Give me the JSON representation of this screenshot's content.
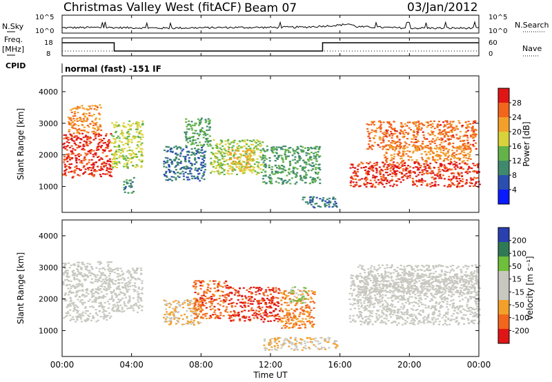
{
  "header": {
    "station": "Christmas Valley West (fitACF)",
    "beam": "Beam 07",
    "date": "03/Jan/2012"
  },
  "left_labels": {
    "nsky": "N.Sky",
    "freq_1": "Freq.",
    "freq_2": "[MHz]",
    "cpid": "CPID"
  },
  "right_labels": {
    "nsearch": "N.Search",
    "nave": "Nave"
  },
  "mode_text": "normal (fast) -151 IF",
  "colors": {
    "noise": "#000000",
    "power_scale": [
      "#0a1aff",
      "#2a4fb0",
      "#3f8a6c",
      "#63b34a",
      "#d9d23a",
      "#f3a02a",
      "#f2661c",
      "#e01616"
    ],
    "velocity_scale": [
      "#e01616",
      "#f2661c",
      "#f3a02a",
      "#c8c8c0",
      "#c8c8c0",
      "#6fbf3a",
      "#2f7a54",
      "#2a3fb0"
    ]
  },
  "chart_data": [
    {
      "type": "line",
      "name": "noise",
      "x": [
        "00:00",
        "02:00",
        "04:00",
        "06:00",
        "08:00",
        "10:00",
        "12:00",
        "14:00",
        "16:00",
        "16:30",
        "17:00",
        "20:00",
        "24:00"
      ],
      "sky_log10": [
        1.4,
        1.5,
        1.4,
        1.3,
        1.4,
        1.5,
        1.5,
        1.6,
        2.2,
        2.6,
        1.7,
        1.3,
        1.3
      ],
      "left_ticks": [
        "10^5",
        "10^0"
      ],
      "right_ticks": [
        "10^5",
        "10^0"
      ]
    },
    {
      "type": "line",
      "name": "frequency",
      "segments": [
        {
          "start": "00:00",
          "end": "03:00",
          "freq": 15.5
        },
        {
          "start": "03:00",
          "end": "15:00",
          "freq": 10.5
        },
        {
          "start": "15:00",
          "end": "24:00",
          "freq": 15.5
        }
      ],
      "left_ticks": [
        "18",
        "8"
      ],
      "right_ticks": [
        "60",
        "0"
      ],
      "nave": 15
    },
    {
      "type": "heatmap",
      "name": "power",
      "ylabel": "Slant Range [km]",
      "yticks": [
        "4000",
        "3000",
        "2000",
        "1000"
      ],
      "ylim": [
        180,
        4500
      ],
      "colorbar_label": "Power [dB]",
      "colorbar_ticks": [
        "28",
        "24",
        "20",
        "16",
        "12",
        "8",
        "4"
      ],
      "clim": [
        0,
        30
      ],
      "regions": [
        {
          "t0": 0.0,
          "t1": 2.8,
          "r0": 1300,
          "r1": 2700,
          "value": 27
        },
        {
          "t0": 0.3,
          "t1": 2.2,
          "r0": 2700,
          "r1": 3600,
          "value": 22
        },
        {
          "t0": 2.8,
          "t1": 4.6,
          "r0": 1600,
          "r1": 3100,
          "value": 16
        },
        {
          "t0": 3.5,
          "t1": 4.1,
          "r0": 800,
          "r1": 1300,
          "value": 9
        },
        {
          "t0": 5.8,
          "t1": 8.2,
          "r0": 1200,
          "r1": 2300,
          "value": 8
        },
        {
          "t0": 7.0,
          "t1": 8.5,
          "r0": 2300,
          "r1": 3200,
          "value": 12
        },
        {
          "t0": 8.5,
          "t1": 11.5,
          "r0": 1400,
          "r1": 2500,
          "value": 15
        },
        {
          "t0": 9.5,
          "t1": 11.0,
          "r0": 1500,
          "r1": 2200,
          "value": 19
        },
        {
          "t0": 11.5,
          "t1": 14.8,
          "r0": 1100,
          "r1": 2300,
          "value": 11
        },
        {
          "t0": 13.8,
          "t1": 15.8,
          "r0": 350,
          "r1": 700,
          "value": 8
        },
        {
          "t0": 16.5,
          "t1": 24.0,
          "r0": 1000,
          "r1": 1800,
          "value": 27
        },
        {
          "t0": 17.5,
          "t1": 23.8,
          "r0": 2200,
          "r1": 3100,
          "value": 24
        },
        {
          "t0": 18.5,
          "t1": 23.5,
          "r0": 1800,
          "r1": 2300,
          "value": 22
        }
      ]
    },
    {
      "type": "heatmap",
      "name": "velocity",
      "ylabel": "Slant Range [km]",
      "yticks": [
        "4000",
        "3000",
        "2000",
        "1000"
      ],
      "ylim": [
        180,
        4500
      ],
      "colorbar_label": "Velocity [m s⁻¹]",
      "colorbar_ticks": [
        "200",
        "100",
        "50",
        "15",
        "-15",
        "-50",
        "-100",
        "-200"
      ],
      "clim": [
        -250,
        250
      ],
      "regions": [
        {
          "t0": 0.0,
          "t1": 2.8,
          "r0": 1300,
          "r1": 3200,
          "value": 0
        },
        {
          "t0": 2.8,
          "t1": 4.6,
          "r0": 1600,
          "r1": 3000,
          "value": 0
        },
        {
          "t0": 5.8,
          "t1": 8.0,
          "r0": 1200,
          "r1": 2000,
          "value": -70
        },
        {
          "t0": 7.5,
          "t1": 9.5,
          "r0": 1400,
          "r1": 2600,
          "value": -160
        },
        {
          "t0": 9.5,
          "t1": 12.5,
          "r0": 1300,
          "r1": 2400,
          "value": -200
        },
        {
          "t0": 12.5,
          "t1": 14.5,
          "r0": 1100,
          "r1": 2300,
          "value": -120
        },
        {
          "t0": 13.0,
          "t1": 14.0,
          "r0": 1900,
          "r1": 2400,
          "value": 60
        },
        {
          "t0": 11.5,
          "t1": 15.8,
          "r0": 400,
          "r1": 800,
          "value": -60
        },
        {
          "t0": 16.5,
          "t1": 24.0,
          "r0": 1200,
          "r1": 2800,
          "value": 0
        },
        {
          "t0": 17.0,
          "t1": 24.0,
          "r0": 2200,
          "r1": 3100,
          "value": 5
        }
      ]
    }
  ],
  "xaxis": {
    "ticks": [
      "00:00",
      "04:00",
      "08:00",
      "12:00",
      "16:00",
      "20:00",
      "00:00"
    ],
    "label": "Time UT"
  }
}
